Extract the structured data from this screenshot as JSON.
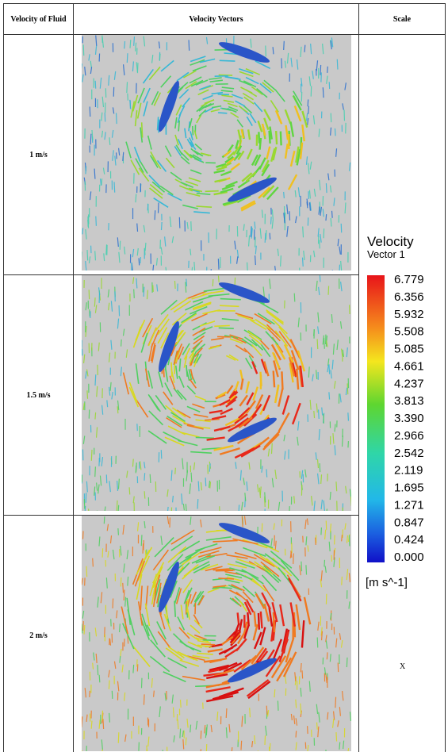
{
  "table": {
    "headers": [
      "Velocity of Fluid",
      "Velocity Vectors",
      "Scale"
    ],
    "rows": [
      "1 m/s",
      "1.5 m/s",
      "2 m/s"
    ]
  },
  "legend": {
    "title": "Velocity",
    "subtitle": "Vector 1",
    "ticks": [
      "6.779",
      "6.356",
      "5.932",
      "5.508",
      "5.085",
      "4.661",
      "4.237",
      "3.813",
      "3.390",
      "2.966",
      "2.542",
      "2.119",
      "1.695",
      "1.271",
      "0.847",
      "0.424",
      "0.000"
    ],
    "unit": "[m s^-1]"
  },
  "axis_label": "X"
}
